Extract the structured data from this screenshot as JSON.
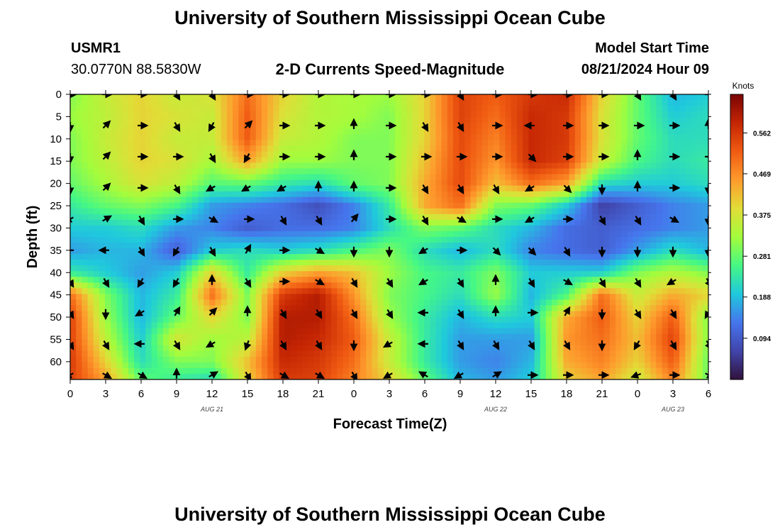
{
  "page_title": "University of Southern Mississippi Ocean Cube",
  "footer_title": "University of Southern Mississippi Ocean Cube",
  "station": {
    "id": "USMR1",
    "position": "30.0770N  88.5830W"
  },
  "plot_title": "2-D Currents Speed-Magnitude",
  "model": {
    "label": "Model Start Time",
    "value": "08/21/2024 Hour 09"
  },
  "colors": {
    "scale": [
      "#30123b",
      "#4145ab",
      "#4675ed",
      "#1fc9dd",
      "#46f884",
      "#a4fc3c",
      "#e1dd37",
      "#fe9b2d",
      "#f05b12",
      "#c42503",
      "#7a0403"
    ]
  },
  "chart_data": {
    "type": "heatmap",
    "title": "2-D Currents Speed-Magnitude",
    "xlabel": "Forecast Time(Z)",
    "ylabel": "Depth (ft)",
    "x_ticks": [
      "0",
      "3",
      "6",
      "9",
      "12",
      "15",
      "18",
      "21",
      "0",
      "3",
      "6",
      "9",
      "12",
      "15",
      "18",
      "21",
      "0",
      "3",
      "6"
    ],
    "x_hours": [
      0,
      3,
      6,
      9,
      12,
      15,
      18,
      21,
      24,
      27,
      30,
      33,
      36,
      39,
      42,
      45,
      48,
      51,
      54
    ],
    "date_labels": [
      {
        "label": "AUG 21",
        "hour": 12
      },
      {
        "label": "AUG 22",
        "hour": 36
      },
      {
        "label": "AUG 23",
        "hour": 51
      }
    ],
    "y_ticks": [
      "0",
      "5",
      "10",
      "15",
      "20",
      "25",
      "30",
      "35",
      "40",
      "45",
      "50",
      "55",
      "60"
    ],
    "y_values": [
      0,
      5,
      10,
      15,
      20,
      25,
      30,
      35,
      40,
      45,
      50,
      55,
      60
    ],
    "xlim": [
      0,
      54
    ],
    "ylim": [
      0,
      64
    ],
    "colorbar": {
      "title": "Knots",
      "ticks": [
        "0.562",
        "0.469",
        "0.375",
        "0.281",
        "0.188",
        "0.094"
      ],
      "values": [
        0.562,
        0.469,
        0.375,
        0.281,
        0.188,
        0.094
      ],
      "range": [
        0,
        0.65
      ]
    },
    "grid_hours": [
      0,
      3,
      6,
      9,
      12,
      15,
      18,
      21,
      24,
      27,
      30,
      33,
      36,
      39,
      42,
      45,
      48,
      51,
      54
    ],
    "grid_depths": [
      0,
      5,
      10,
      15,
      20,
      25,
      30,
      35,
      40,
      45,
      50,
      55,
      60,
      64
    ],
    "speed": [
      [
        0.3,
        0.36,
        0.4,
        0.36,
        0.38,
        0.5,
        0.4,
        0.34,
        0.33,
        0.32,
        0.4,
        0.55,
        0.52,
        0.56,
        0.58,
        0.4,
        0.28,
        0.18,
        0.2
      ],
      [
        0.32,
        0.35,
        0.4,
        0.38,
        0.36,
        0.52,
        0.38,
        0.34,
        0.33,
        0.3,
        0.4,
        0.55,
        0.5,
        0.58,
        0.56,
        0.38,
        0.28,
        0.2,
        0.22
      ],
      [
        0.3,
        0.36,
        0.4,
        0.36,
        0.36,
        0.52,
        0.36,
        0.34,
        0.3,
        0.3,
        0.4,
        0.54,
        0.48,
        0.58,
        0.56,
        0.38,
        0.28,
        0.22,
        0.22
      ],
      [
        0.3,
        0.35,
        0.4,
        0.38,
        0.33,
        0.45,
        0.32,
        0.32,
        0.3,
        0.3,
        0.42,
        0.54,
        0.46,
        0.58,
        0.55,
        0.36,
        0.26,
        0.22,
        0.24
      ],
      [
        0.28,
        0.33,
        0.38,
        0.35,
        0.27,
        0.28,
        0.24,
        0.22,
        0.28,
        0.3,
        0.44,
        0.54,
        0.42,
        0.5,
        0.45,
        0.22,
        0.2,
        0.2,
        0.22
      ],
      [
        0.24,
        0.28,
        0.3,
        0.26,
        0.16,
        0.14,
        0.12,
        0.08,
        0.14,
        0.24,
        0.44,
        0.5,
        0.3,
        0.28,
        0.2,
        0.06,
        0.1,
        0.14,
        0.16
      ],
      [
        0.2,
        0.2,
        0.22,
        0.16,
        0.14,
        0.1,
        0.12,
        0.12,
        0.14,
        0.22,
        0.3,
        0.28,
        0.22,
        0.18,
        0.12,
        0.1,
        0.12,
        0.14,
        0.16
      ],
      [
        0.16,
        0.18,
        0.18,
        0.1,
        0.2,
        0.22,
        0.2,
        0.22,
        0.26,
        0.3,
        0.22,
        0.18,
        0.22,
        0.14,
        0.12,
        0.1,
        0.16,
        0.22,
        0.18
      ],
      [
        0.24,
        0.2,
        0.16,
        0.2,
        0.4,
        0.24,
        0.4,
        0.45,
        0.42,
        0.32,
        0.26,
        0.24,
        0.3,
        0.2,
        0.2,
        0.2,
        0.3,
        0.34,
        0.3
      ],
      [
        0.5,
        0.3,
        0.18,
        0.24,
        0.5,
        0.3,
        0.56,
        0.6,
        0.46,
        0.3,
        0.26,
        0.22,
        0.32,
        0.18,
        0.26,
        0.5,
        0.36,
        0.44,
        0.4
      ],
      [
        0.55,
        0.32,
        0.18,
        0.28,
        0.4,
        0.3,
        0.6,
        0.6,
        0.5,
        0.32,
        0.24,
        0.18,
        0.22,
        0.2,
        0.44,
        0.52,
        0.4,
        0.52,
        0.3
      ],
      [
        0.55,
        0.35,
        0.2,
        0.38,
        0.32,
        0.35,
        0.6,
        0.58,
        0.52,
        0.36,
        0.24,
        0.16,
        0.16,
        0.16,
        0.46,
        0.5,
        0.42,
        0.55,
        0.3
      ],
      [
        0.56,
        0.4,
        0.22,
        0.3,
        0.3,
        0.42,
        0.58,
        0.56,
        0.5,
        0.36,
        0.24,
        0.16,
        0.14,
        0.18,
        0.44,
        0.48,
        0.4,
        0.52,
        0.28
      ],
      [
        0.55,
        0.45,
        0.28,
        0.24,
        0.22,
        0.4,
        0.56,
        0.55,
        0.48,
        0.4,
        0.28,
        0.18,
        0.16,
        0.2,
        0.4,
        0.45,
        0.36,
        0.48,
        0.28
      ]
    ],
    "vectors_note": "direction arrows (degrees, 0=up/north) at hours 0..54 step 3 and depths 0..64",
    "arrow_depths": [
      0,
      7,
      14,
      21,
      28,
      35,
      42,
      49,
      56,
      63
    ],
    "arrow_dirs": [
      [
        90,
        90,
        90,
        150,
        150,
        90,
        90,
        90,
        90,
        90,
        90,
        150,
        90,
        90,
        90,
        90,
        150,
        150,
        90
      ],
      [
        180,
        45,
        90,
        150,
        210,
        45,
        90,
        90,
        0,
        90,
        150,
        150,
        90,
        270,
        90,
        90,
        90,
        90,
        0
      ],
      [
        180,
        45,
        90,
        90,
        150,
        210,
        90,
        90,
        0,
        90,
        90,
        90,
        90,
        135,
        90,
        90,
        0,
        90,
        90
      ],
      [
        180,
        45,
        90,
        150,
        240,
        240,
        240,
        0,
        0,
        90,
        150,
        150,
        150,
        240,
        135,
        180,
        0,
        90,
        180
      ],
      [
        240,
        60,
        150,
        90,
        120,
        90,
        150,
        150,
        40,
        90,
        150,
        120,
        90,
        240,
        90,
        150,
        150,
        120,
        180
      ],
      [
        270,
        270,
        150,
        210,
        150,
        30,
        90,
        120,
        180,
        180,
        240,
        90,
        135,
        135,
        150,
        180,
        180,
        180,
        180
      ],
      [
        150,
        150,
        210,
        210,
        0,
        150,
        90,
        120,
        150,
        150,
        240,
        150,
        0,
        150,
        120,
        150,
        150,
        240,
        150
      ],
      [
        150,
        180,
        240,
        30,
        45,
        0,
        150,
        150,
        150,
        150,
        270,
        150,
        0,
        90,
        30,
        180,
        150,
        150,
        210
      ],
      [
        150,
        150,
        270,
        150,
        240,
        200,
        150,
        150,
        180,
        240,
        270,
        150,
        150,
        150,
        150,
        180,
        210,
        150,
        150
      ],
      [
        240,
        120,
        120,
        0,
        60,
        150,
        120,
        120,
        150,
        240,
        300,
        240,
        60,
        90,
        90,
        90,
        250,
        90,
        120
      ]
    ]
  }
}
